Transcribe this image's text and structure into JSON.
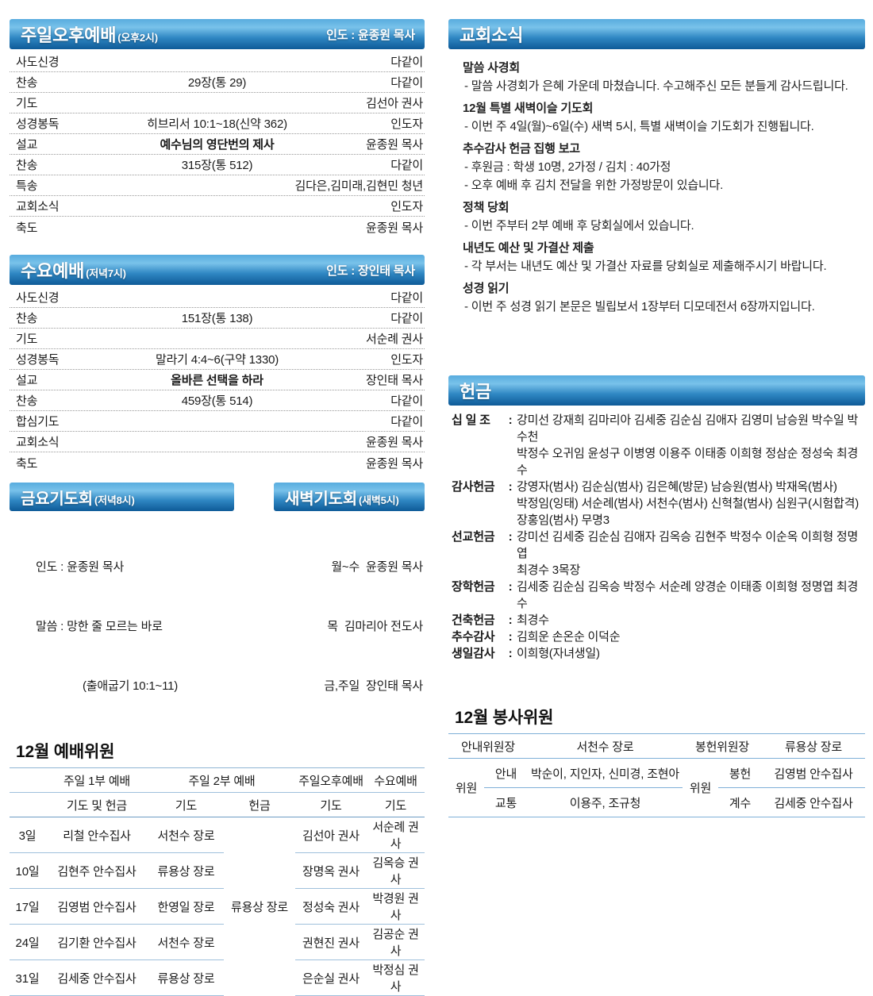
{
  "colors": {
    "header_gradient_top": "#79c2ea",
    "header_gradient_mid": "#2f87c3",
    "header_gradient_bottom": "#0e5a97",
    "table_line_blue": "#8fb4d4",
    "dotted_line": "#999999",
    "text": "#1a1a1a"
  },
  "left": {
    "sunday": {
      "title": "주일오후예배",
      "time": "(오후2시)",
      "leader": "인도 : 윤종원 목사",
      "rows": [
        {
          "item": "사도신경",
          "center": "",
          "right": "다같이"
        },
        {
          "item": "찬송",
          "center": "29장(통 29)",
          "right": "다같이"
        },
        {
          "item": "기도",
          "center": "",
          "right": "김선아 권사"
        },
        {
          "item": "성경봉독",
          "center": "히브리서 10:1~18(신약 362)",
          "right": "인도자"
        },
        {
          "item": "설교",
          "center": "예수님의 영단번의 제사",
          "right": "윤종원 목사"
        },
        {
          "item": "찬송",
          "center": "315장(통 512)",
          "right": "다같이"
        },
        {
          "item": "특송",
          "center": "",
          "right": "김다은,김미래,김현민 청년"
        },
        {
          "item": "교회소식",
          "center": "",
          "right": "인도자"
        },
        {
          "item": "축도",
          "center": "",
          "right": "윤종원 목사"
        }
      ]
    },
    "wednesday": {
      "title": "수요예배",
      "time": "(저녁7시)",
      "leader": "인도 : 장인태 목사",
      "rows": [
        {
          "item": "사도신경",
          "center": "",
          "right": "다같이"
        },
        {
          "item": "찬송",
          "center": "151장(통 138)",
          "right": "다같이"
        },
        {
          "item": "기도",
          "center": "",
          "right": "서순례 권사"
        },
        {
          "item": "성경봉독",
          "center": "말라기 4:4~6(구약 1330)",
          "right": "인도자"
        },
        {
          "item": "설교",
          "center": "올바른 선택을 하라",
          "right": "장인태 목사"
        },
        {
          "item": "찬송",
          "center": "459장(통 514)",
          "right": "다같이"
        },
        {
          "item": "합심기도",
          "center": "",
          "right": "다같이"
        },
        {
          "item": "교회소식",
          "center": "",
          "right": "윤종원 목사"
        },
        {
          "item": "축도",
          "center": "",
          "right": "윤종원 목사"
        }
      ]
    },
    "friday": {
      "title": "금요기도회",
      "time": "(저녁8시)",
      "lines": [
        "인도 : 윤종원 목사",
        "말씀 : 망한 줄 모르는 바로",
        "(출애굽기 10:1~11)"
      ]
    },
    "dawn": {
      "title": "새벽기도회",
      "time": "(새벽5시)",
      "lines": [
        "월~수  윤종원 목사",
        "목  김마리아 전도사",
        "금,주일  장인태 목사"
      ]
    },
    "worship_committee": {
      "heading": "12월 예배위원",
      "h1": [
        "주일 1부 예배",
        "주일 2부 예배",
        "주일오후예배",
        "수요예배"
      ],
      "h2": [
        "기도 및 헌금",
        "기도",
        "헌금",
        "기도",
        "기도"
      ],
      "merged_offering": "류용상 장로",
      "rows": [
        {
          "date": "3일",
          "first": "리철 안수집사",
          "second": "서천수 장로",
          "afternoon": "김선아 권사",
          "wednesday": "서순례 권사"
        },
        {
          "date": "10일",
          "first": "김현주 안수집사",
          "second": "류용상 장로",
          "afternoon": "장명옥 권사",
          "wednesday": "김옥승 권사"
        },
        {
          "date": "17일",
          "first": "김영범 안수집사",
          "second": "한영일 장로",
          "afternoon": "정성숙 권사",
          "wednesday": "박경원 권사"
        },
        {
          "date": "24일",
          "first": "김기환 안수집사",
          "second": "서천수 장로",
          "afternoon": "권현진 권사",
          "wednesday": "김공순 권사"
        },
        {
          "date": "31일",
          "first": "김세중 안수집사",
          "second": "류용상 장로",
          "afternoon": "은순실 권사",
          "wednesday": "박정심 권사"
        }
      ]
    }
  },
  "right": {
    "news": {
      "title": "교회소식",
      "items": [
        {
          "title": "말씀 사경회",
          "lines": [
            "- 말씀 사경회가 은혜 가운데 마쳤습니다. 수고해주신 모든 분들게 감사드립니다."
          ]
        },
        {
          "title": "12월 특별 새벽이슬 기도회",
          "lines": [
            "- 이번 주 4일(월)~6일(수) 새벽 5시, 특별 새벽이슬 기도회가 진행됩니다."
          ]
        },
        {
          "title": "추수감사 헌금 집행 보고",
          "lines": [
            "- 후원금 : 학생 10명, 2가정 / 김치 : 40가정",
            "- 오후 예배 후 김치 전달을 위한 가정방문이 있습니다."
          ]
        },
        {
          "title": "정책 당회",
          "lines": [
            "- 이번 주부터 2부 예배 후 당회실에서 있습니다."
          ]
        },
        {
          "title": "내년도 예산 및 가결산 제출",
          "lines": [
            "- 각 부서는 내년도 예산 및 가결산 자료를 당회실로 제출해주시기 바랍니다."
          ]
        },
        {
          "title": "성경 읽기",
          "lines": [
            "- 이번 주 성경 읽기 본문은 빌립보서 1장부터 디모데전서 6장까지입니다."
          ]
        }
      ]
    },
    "offering": {
      "title": "헌금",
      "entries": [
        {
          "label": "십 일 조",
          "lines": [
            "강미선 강재희 김마리아 김세중 김순심 김애자 김영미 남승원 박수일 박수천",
            "박정수 오귀임 윤성구 이병영 이용주 이태종 이희형 정삼순 정성숙 최경수"
          ]
        },
        {
          "label": "감사헌금",
          "lines": [
            "강영자(범사) 김순심(범사) 김은혜(방문) 남승원(범사) 박재옥(범사)",
            "박정임(잉태) 서순례(범사) 서천수(범사) 신혁철(범사) 심원구(시험합격)",
            "장홍임(범사) 무명3"
          ]
        },
        {
          "label": "선교헌금",
          "lines": [
            "강미선 김세중 김순심 김애자 김옥승 김현주 박정수 이순옥 이희형 정명엽",
            "최경수 3목장"
          ]
        },
        {
          "label": "장학헌금",
          "lines": [
            "김세중 김순심 김옥승 박정수 서순례 양경순 이태종 이희형 정명엽 최경수"
          ]
        },
        {
          "label": "건축헌금",
          "lines": [
            "최경수"
          ]
        },
        {
          "label": "추수감사",
          "lines": [
            "김희운 손온순 이덕순"
          ]
        },
        {
          "label": "생일감사",
          "lines": [
            "이희형(자녀생일)"
          ]
        }
      ]
    },
    "service": {
      "heading": "12월 봉사위원",
      "head": {
        "l_label": "안내위원장",
        "l_value": "서천수 장로",
        "r_label": "봉헌위원장",
        "r_value": "류용상 장로"
      },
      "left_group_label": "위원",
      "right_group_label": "위원",
      "left_rows": [
        {
          "role": "안내",
          "names": "박순이, 지인자, 신미경, 조현아"
        },
        {
          "role": "교통",
          "names": "이용주, 조규청"
        }
      ],
      "right_rows": [
        {
          "role": "봉헌",
          "names": "김영범 안수집사"
        },
        {
          "role": "계수",
          "names": "김세중 안수집사"
        }
      ]
    }
  }
}
